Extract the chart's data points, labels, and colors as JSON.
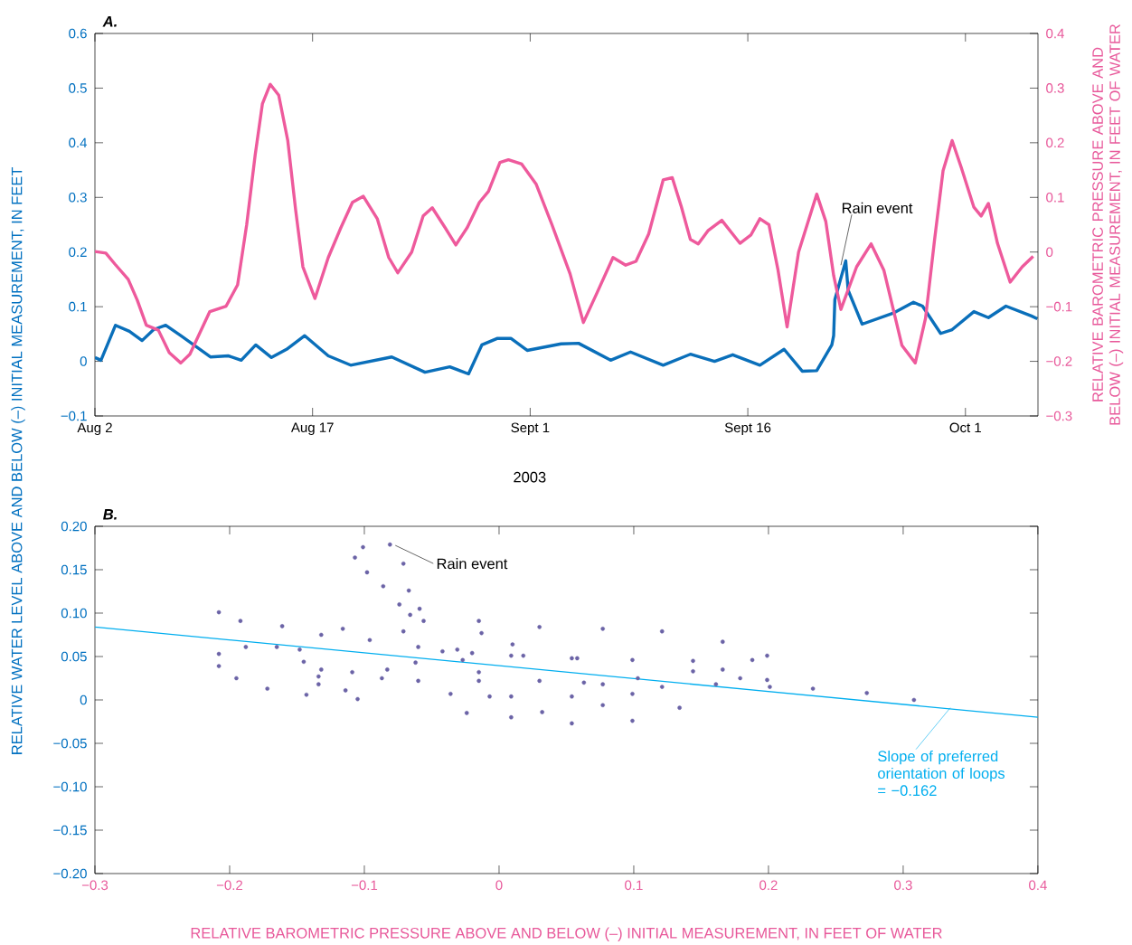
{
  "chart_data": [
    {
      "type": "line",
      "title": "A.",
      "xlabel": "2003",
      "ylabel": "RELATIVE WATER LEVEL ABOVE AND BELOW (–) INITIAL MEASUREMENT, IN FEET",
      "y2label": "RELATIVE BAROMETRIC PRESSURE ABOVE AND BELOW (–) INITIAL MEASUREMENT, IN FEET OF WATER",
      "xlim": [
        "2003-08-02",
        "2003-10-06"
      ],
      "xticks": [
        {
          "value": "2003-08-02",
          "label": "Aug 2"
        },
        {
          "value": "2003-08-17",
          "label": "Aug 17"
        },
        {
          "value": "2003-09-01",
          "label": "Sept 1"
        },
        {
          "value": "2003-09-16",
          "label": "Sept 16"
        },
        {
          "value": "2003-10-01",
          "label": "Oct 1"
        }
      ],
      "ylim": [
        -0.1,
        0.6
      ],
      "yticks": [
        {
          "value": -0.1,
          "label": "−0.1"
        },
        0,
        0.1,
        0.2,
        0.3,
        0.4,
        0.5,
        0.6
      ],
      "y2lim": [
        -0.3,
        0.4
      ],
      "y2ticks": [
        {
          "value": -0.3,
          "label": "−0.3"
        },
        {
          "value": -0.2,
          "label": "−0.2"
        },
        {
          "value": -0.1,
          "label": "−0.1"
        },
        0,
        0.1,
        0.2,
        0.3,
        0.4
      ],
      "series": [
        {
          "color": "#0a6fba",
          "x": [
            "2003-08-02T00:00",
            "2003-08-02T10:00",
            "2003-08-03T10:00",
            "2003-08-04T09:00",
            "2003-08-05T06:00",
            "2003-08-06T01:00",
            "2003-08-06T21:00",
            "2003-08-07T22:00",
            "2003-08-09T23:00",
            "2003-08-11T05:00",
            "2003-08-12T02:00",
            "2003-08-13T02:00",
            "2003-08-14T04:00",
            "2003-08-15T05:00",
            "2003-08-16T11:00",
            "2003-08-18T02:00",
            "2003-08-19T15:00",
            "2003-08-22T11:00",
            "2003-08-24T18:00",
            "2003-08-26T11:00",
            "2003-08-27T18:00",
            "2003-08-28T16:00",
            "2003-08-29T18:00",
            "2003-08-30T16:00",
            "2003-08-31T19:00",
            "2003-09-03T03:00",
            "2003-09-04T08:00",
            "2003-09-06T13:00",
            "2003-09-07T22:00",
            "2003-09-10T04:00",
            "2003-09-12T01:00",
            "2003-09-13T17:00",
            "2003-09-14T23:00",
            "2003-09-16T20:00",
            "2003-09-18T12:00",
            "2003-09-19T18:00",
            "2003-09-20T18:00",
            "2003-09-21T19:00",
            "2003-09-21T22:00",
            "2003-09-22T00:00",
            "2003-09-22T18:00",
            "2003-09-22T22:00",
            "2003-09-23T21:00",
            "2003-09-26T00:00",
            "2003-09-27T10:00",
            "2003-09-28T01:00",
            "2003-09-29T07:00",
            "2003-09-30T02:00",
            "2003-10-01T14:00",
            "2003-10-02T14:00",
            "2003-10-03T19:00",
            "2003-10-05T13:00",
            "2003-10-05T23:00"
          ],
          "values": [
            0.007,
            0.002,
            0.066,
            0.055,
            0.038,
            0.058,
            0.066,
            0.047,
            0.008,
            0.01,
            0.002,
            0.03,
            0.007,
            0.022,
            0.047,
            0.01,
            -0.007,
            0.008,
            -0.02,
            -0.01,
            -0.023,
            0.03,
            0.042,
            0.042,
            0.02,
            0.032,
            0.033,
            0.002,
            0.017,
            -0.007,
            0.013,
            0,
            0.012,
            -0.007,
            0.022,
            -0.018,
            -0.017,
            0.03,
            0.047,
            0.113,
            0.184,
            0.13,
            0.068,
            0.088,
            0.108,
            0.101,
            0.051,
            0.058,
            0.091,
            0.08,
            0.101,
            0.083,
            0.078
          ]
        },
        {
          "color": "#ee5a9c",
          "axis": "y2",
          "x": [
            "2003-08-02T00:00",
            "2003-08-02T18:00",
            "2003-08-03T09:00",
            "2003-08-04T07:00",
            "2003-08-04T22:00",
            "2003-08-05T13:00",
            "2003-08-06T09:00",
            "2003-08-07T03:00",
            "2003-08-07T22:00",
            "2003-08-08T13:00",
            "2003-08-09T22:00",
            "2003-08-11T01:00",
            "2003-08-11T20:00",
            "2003-08-12T11:00",
            "2003-08-13T01:00",
            "2003-08-13T13:00",
            "2003-08-14T02:00",
            "2003-08-14T16:00",
            "2003-08-15T07:00",
            "2003-08-15T20:00",
            "2003-08-16T08:00",
            "2003-08-17T04:00",
            "2003-08-18T02:00",
            "2003-08-18T23:00",
            "2003-08-19T18:00",
            "2003-08-20T12:00",
            "2003-08-21T11:00",
            "2003-08-22T06:00",
            "2003-08-22T21:00",
            "2003-08-23T20:00",
            "2003-08-24T15:00",
            "2003-08-25T06:00",
            "2003-08-26T03:00",
            "2003-08-26T21:00",
            "2003-08-27T16:00",
            "2003-08-28T12:00",
            "2003-08-29T03:00",
            "2003-08-29T22:00",
            "2003-08-30T12:00",
            "2003-08-31T10:00",
            "2003-09-01T10:00",
            "2003-09-02T12:00",
            "2003-09-03T18:00",
            "2003-09-04T16:00",
            "2003-09-05T14:00",
            "2003-09-06T17:00",
            "2003-09-07T14:00",
            "2003-09-08T07:00",
            "2003-09-09T04:00",
            "2003-09-10T04:00",
            "2003-09-10T19:00",
            "2003-09-11T10:00",
            "2003-09-12T01:00",
            "2003-09-12T14:00",
            "2003-09-13T06:00",
            "2003-09-14T05:00",
            "2003-09-15T11:00",
            "2003-09-16T05:00",
            "2003-09-16T20:00",
            "2003-09-17T11:00",
            "2003-09-18T02:00",
            "2003-09-18T17:00",
            "2003-09-19T12:00",
            "2003-09-20T18:00",
            "2003-09-21T09:00",
            "2003-09-21T22:00",
            "2003-09-22T10:00",
            "2003-09-23T12:00",
            "2003-09-24T12:00",
            "2003-09-25T09:00",
            "2003-09-26T15:00",
            "2003-09-27T13:00",
            "2003-09-28T06:00",
            "2003-09-28T21:00",
            "2003-09-29T11:00",
            "2003-09-30T02:00",
            "2003-09-30T17:00",
            "2003-10-01T14:00",
            "2003-10-02T02:00",
            "2003-10-02T14:00",
            "2003-10-03T05:00",
            "2003-10-04T02:00",
            "2003-10-04T22:00",
            "2003-10-05T16:00"
          ],
          "values": [
            0.001,
            -0.002,
            -0.022,
            -0.05,
            -0.088,
            -0.134,
            -0.143,
            -0.184,
            -0.203,
            -0.187,
            -0.109,
            -0.099,
            -0.06,
            0.05,
            0.177,
            0.271,
            0.307,
            0.287,
            0.204,
            0.077,
            -0.027,
            -0.085,
            -0.01,
            0.045,
            0.091,
            0.102,
            0.061,
            -0.01,
            -0.038,
            0,
            0.066,
            0.081,
            0.045,
            0.013,
            0.045,
            0.091,
            0.111,
            0.164,
            0.169,
            0.161,
            0.124,
            0.05,
            -0.04,
            -0.129,
            -0.076,
            -0.01,
            -0.024,
            -0.017,
            0.033,
            0.132,
            0.136,
            0.083,
            0.023,
            0.015,
            0.039,
            0.058,
            0.016,
            0.031,
            0.061,
            0.05,
            -0.033,
            -0.137,
            0,
            0.106,
            0.056,
            -0.043,
            -0.105,
            -0.027,
            0.015,
            -0.033,
            -0.171,
            -0.203,
            -0.121,
            0.023,
            0.149,
            0.204,
            0.155,
            0.082,
            0.066,
            0.089,
            0.016,
            -0.055,
            -0.027,
            -0.008
          ]
        }
      ],
      "annotations": [
        {
          "text": "Rain event",
          "x": "2003-09-22T10:00",
          "y": 0.176
        }
      ]
    },
    {
      "type": "scatter",
      "title": "B.",
      "xlabel": "RELATIVE BAROMETRIC PRESSURE ABOVE AND BELOW (–) INITIAL MEASUREMENT, IN FEET OF WATER",
      "xlim": [
        -0.3,
        0.4
      ],
      "xticks": [
        {
          "value": -0.3,
          "label": "−0.3"
        },
        {
          "value": -0.2,
          "label": "−0.2"
        },
        {
          "value": -0.1,
          "label": "−0.1"
        },
        0,
        0.1,
        0.2,
        0.3,
        0.4
      ],
      "ylim": [
        -0.2,
        0.2
      ],
      "yticks": [
        {
          "value": -0.2,
          "label": "−0.20"
        },
        {
          "value": -0.15,
          "label": "−0.15"
        },
        {
          "value": -0.1,
          "label": "−0.10"
        },
        {
          "value": -0.05,
          "label": "−0.05"
        },
        0,
        {
          "value": 0.05,
          "label": "0.05"
        },
        {
          "value": 0.1,
          "label": "0.10"
        },
        {
          "value": 0.15,
          "label": "0.15"
        },
        {
          "value": 0.2,
          "label": "0.20"
        }
      ],
      "series": [
        {
          "color": "#6b63a6",
          "marker": "circle",
          "x": [
            -0.081,
            -0.101,
            -0.107,
            -0.098,
            -0.086,
            -0.074,
            -0.066,
            -0.071,
            -0.067,
            -0.059,
            -0.056,
            -0.013,
            0.01,
            -0.208,
            -0.192,
            -0.161,
            -0.116,
            -0.071,
            -0.015,
            0.03,
            0.077,
            0.121,
            0.166,
            0.199,
            0.188,
            0.144,
            0.099,
            0.054,
            0.009,
            -0.132,
            -0.096,
            -0.06,
            -0.02,
            0.018,
            0.058,
            0.199,
            0.233,
            0.273,
            0.308,
            0.201,
            0.179,
            -0.188,
            -0.165,
            -0.148,
            -0.145,
            -0.132,
            -0.109,
            -0.083,
            -0.062,
            -0.042,
            -0.031,
            -0.027,
            -0.015,
            -0.007,
            -0.208,
            -0.208,
            -0.195,
            -0.172,
            -0.143,
            -0.105,
            -0.134,
            -0.134,
            -0.114,
            -0.087,
            -0.06,
            -0.015,
            0.03,
            0.063,
            -0.036,
            0.009,
            0.054,
            0.099,
            0.134,
            0.099,
            0.054,
            0.009,
            -0.024,
            0.032,
            0.077,
            0.103,
            0.144,
            0.166,
            0.161,
            0.121,
            0.077
          ],
          "values": [
            0.179,
            0.176,
            0.164,
            0.147,
            0.131,
            0.11,
            0.098,
            0.157,
            0.126,
            0.105,
            0.091,
            0.077,
            0.064,
            0.101,
            0.091,
            0.085,
            0.082,
            0.079,
            0.091,
            0.084,
            0.082,
            0.079,
            0.067,
            0.051,
            0.046,
            0.045,
            0.046,
            0.048,
            0.051,
            0.075,
            0.069,
            0.061,
            0.054,
            0.051,
            0.048,
            0.023,
            0.013,
            0.008,
            0.0,
            0.015,
            0.025,
            0.061,
            0.061,
            0.058,
            0.044,
            0.035,
            0.032,
            0.035,
            0.043,
            0.056,
            0.058,
            0.046,
            0.032,
            0.004,
            0.053,
            0.039,
            0.025,
            0.013,
            0.006,
            0.001,
            0.027,
            0.018,
            0.011,
            0.025,
            0.022,
            0.022,
            0.022,
            0.02,
            0.007,
            0.004,
            0.004,
            0.007,
            -0.009,
            -0.024,
            -0.027,
            -0.02,
            -0.015,
            -0.014,
            -0.006,
            0.025,
            0.033,
            0.035,
            0.018,
            0.015,
            0.018
          ]
        },
        {
          "type": "line",
          "color": "#00aeef",
          "x": [
            -0.3,
            0.4
          ],
          "values": [
            0.084,
            -0.02
          ]
        }
      ],
      "annotations": [
        {
          "text": "Rain event",
          "x": -0.077,
          "y": 0.178
        },
        {
          "text": "Slope of preferred orientation of loops = −0.162",
          "x": 0.335,
          "y": -0.009
        }
      ]
    }
  ]
}
